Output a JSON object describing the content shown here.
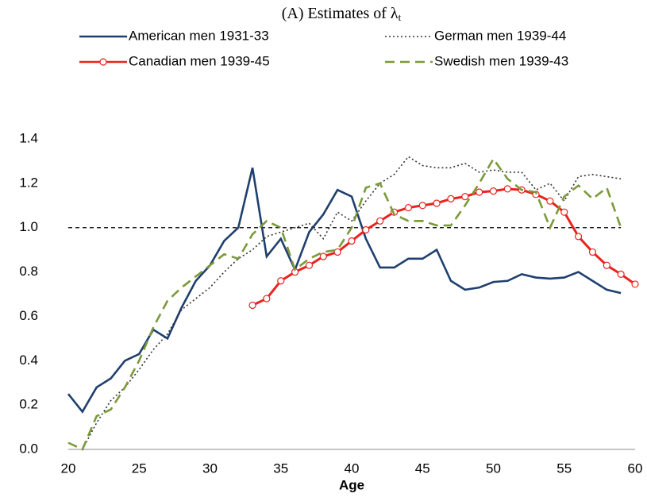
{
  "chart_data": {
    "type": "line",
    "title": "(A) Estimates of λ",
    "title_subscript": "t",
    "x_label": "Age",
    "x": [
      20,
      21,
      22,
      23,
      24,
      25,
      26,
      27,
      28,
      29,
      30,
      31,
      32,
      33,
      34,
      35,
      36,
      37,
      38,
      39,
      40,
      41,
      42,
      43,
      44,
      45,
      46,
      47,
      48,
      49,
      50,
      51,
      52,
      53,
      54,
      55,
      56,
      57,
      58,
      59,
      60
    ],
    "series": [
      {
        "name": "American men 1931-33",
        "color": "#1f3f6e",
        "dash": "solid",
        "markers": false,
        "values": [
          0.25,
          0.17,
          0.28,
          0.32,
          0.4,
          0.43,
          0.54,
          0.5,
          0.64,
          0.76,
          0.83,
          0.94,
          1.0,
          1.27,
          0.87,
          0.95,
          0.81,
          0.98,
          1.06,
          1.17,
          1.14,
          0.95,
          0.82,
          0.82,
          0.86,
          0.86,
          0.9,
          0.76,
          0.72,
          0.73,
          0.755,
          0.76,
          0.79,
          0.775,
          0.77,
          0.775,
          0.8,
          0.76,
          0.72,
          0.705,
          null
        ]
      },
      {
        "name": "German men 1939-44",
        "color": "#333333",
        "dash": "dot",
        "markers": false,
        "values": [
          null,
          0.0,
          0.12,
          0.22,
          0.28,
          0.36,
          0.45,
          0.52,
          0.63,
          0.68,
          0.73,
          0.8,
          0.86,
          0.9,
          0.96,
          0.98,
          1.0,
          1.02,
          0.95,
          1.07,
          1.03,
          1.12,
          1.2,
          1.24,
          1.32,
          1.28,
          1.27,
          1.27,
          1.29,
          1.25,
          1.26,
          1.25,
          1.25,
          1.17,
          1.2,
          1.12,
          1.23,
          1.24,
          1.23,
          1.22,
          null
        ]
      },
      {
        "name": "Canadian men 1939-45",
        "color": "#e8231f",
        "dash": "solid",
        "markers": true,
        "values": [
          null,
          null,
          null,
          null,
          null,
          null,
          null,
          null,
          null,
          null,
          null,
          null,
          null,
          0.65,
          0.68,
          0.76,
          0.8,
          0.83,
          0.87,
          0.89,
          0.94,
          0.99,
          1.03,
          1.07,
          1.09,
          1.1,
          1.11,
          1.13,
          1.14,
          1.16,
          1.165,
          1.175,
          1.17,
          1.15,
          1.12,
          1.07,
          0.96,
          0.89,
          0.83,
          0.79,
          0.745
        ]
      },
      {
        "name": "Swedish men 1939-43",
        "color": "#7a9a3a",
        "dash": "dash",
        "markers": false,
        "values": [
          0.03,
          0.0,
          0.15,
          0.18,
          0.28,
          0.4,
          0.55,
          0.67,
          0.73,
          0.78,
          0.83,
          0.88,
          0.86,
          0.97,
          1.03,
          1.0,
          0.81,
          0.86,
          0.89,
          0.9,
          1.0,
          1.18,
          1.2,
          1.06,
          1.03,
          1.03,
          1.01,
          1.01,
          1.1,
          1.2,
          1.31,
          1.22,
          1.17,
          1.16,
          1.0,
          1.14,
          1.19,
          1.13,
          1.18,
          1.0,
          null
        ]
      }
    ],
    "reference_line": {
      "y": 1.0,
      "x": [
        20,
        59
      ]
    },
    "xlim": [
      20,
      60
    ],
    "xticks": [
      20,
      25,
      30,
      35,
      40,
      45,
      50,
      55,
      60
    ],
    "ylim": [
      0,
      1.4
    ],
    "yticks": [
      {
        "value": 0,
        "label": "0.0"
      },
      {
        "value": 0.2,
        "label": "0.2"
      },
      {
        "value": 0.4,
        "label": "0.4"
      },
      {
        "value": 0.6,
        "label": "0.6"
      },
      {
        "value": 0.8,
        "label": "0.8"
      },
      {
        "value": 1,
        "label": "1.0"
      },
      {
        "value": 1.2,
        "label": "1.2"
      },
      {
        "value": 1.4,
        "label": "1.4"
      }
    ],
    "grid": false
  }
}
